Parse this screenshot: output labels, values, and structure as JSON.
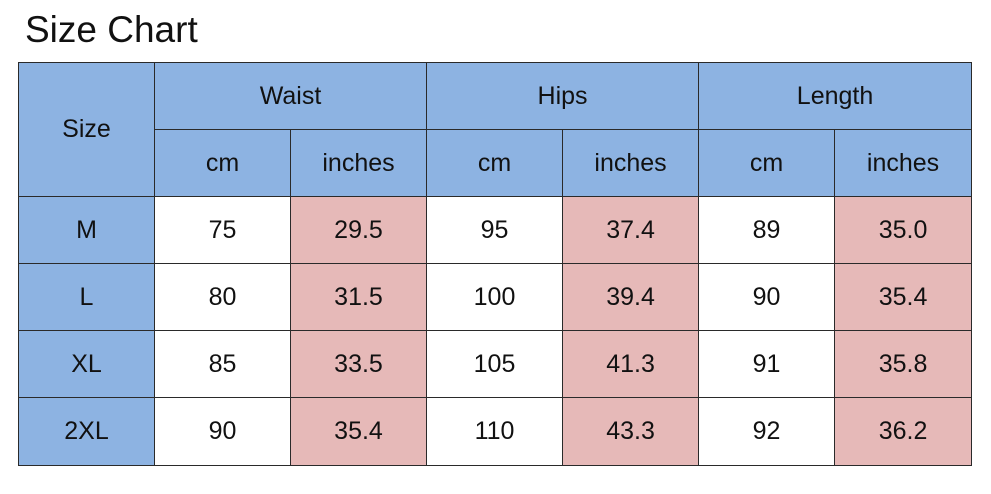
{
  "title": "Size Chart",
  "colors": {
    "header_bg": "#8db3e2",
    "cm_bg": "#ffffff",
    "inches_bg": "#e6b9b8",
    "border": "#2a2a2a"
  },
  "table": {
    "size_header": "Size",
    "groups": [
      "Waist",
      "Hips",
      "Length"
    ],
    "units": [
      "cm",
      "inches",
      "cm",
      "inches",
      "cm",
      "inches"
    ],
    "rows": [
      {
        "size": "M",
        "values": [
          "75",
          "29.5",
          "95",
          "37.4",
          "89",
          "35.0"
        ]
      },
      {
        "size": "L",
        "values": [
          "80",
          "31.5",
          "100",
          "39.4",
          "90",
          "35.4"
        ]
      },
      {
        "size": "XL",
        "values": [
          "85",
          "33.5",
          "105",
          "41.3",
          "91",
          "35.8"
        ]
      },
      {
        "size": "2XL",
        "values": [
          "90",
          "35.4",
          "110",
          "43.3",
          "92",
          "36.2"
        ]
      }
    ]
  }
}
